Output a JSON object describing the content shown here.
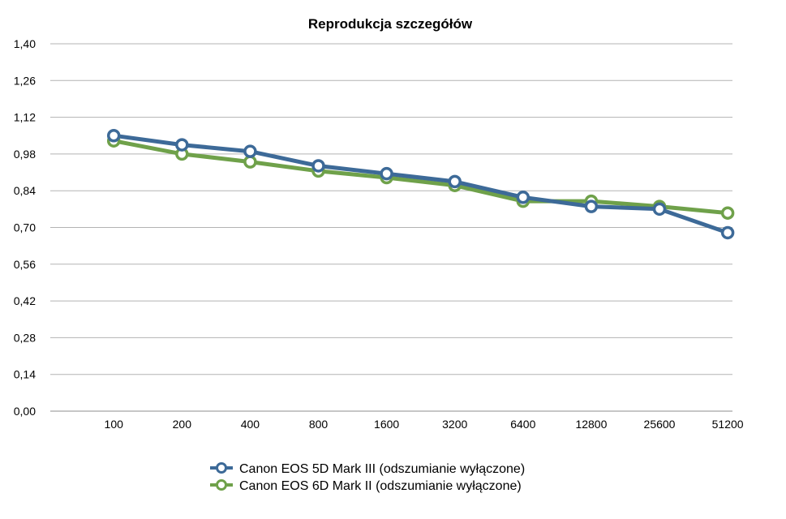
{
  "chart_data": {
    "type": "line",
    "title": "Reprodukcja szczegółów",
    "xlabel": "",
    "ylabel": "",
    "categories": [
      "100",
      "200",
      "400",
      "800",
      "1600",
      "3200",
      "6400",
      "12800",
      "25600",
      "51200"
    ],
    "ylim": [
      0,
      1.4
    ],
    "yticks": [
      "0,00",
      "0,14",
      "0,28",
      "0,42",
      "0,56",
      "0,70",
      "0,84",
      "0,98",
      "1,12",
      "1,26",
      "1,40"
    ],
    "grid": true,
    "legend_position": "bottom",
    "series": [
      {
        "name": "Canon EOS 5D Mark III (odszumianie wyłączone)",
        "color": "#3d6a98",
        "values": [
          1.05,
          1.015,
          0.99,
          0.935,
          0.905,
          0.875,
          0.815,
          0.78,
          0.77,
          0.68
        ]
      },
      {
        "name": "Canon EOS 6D Mark II (odszumianie wyłączone)",
        "color": "#6fa14a",
        "values": [
          1.03,
          0.98,
          0.95,
          0.915,
          0.89,
          0.86,
          0.8,
          0.8,
          0.78,
          0.755
        ]
      }
    ]
  }
}
